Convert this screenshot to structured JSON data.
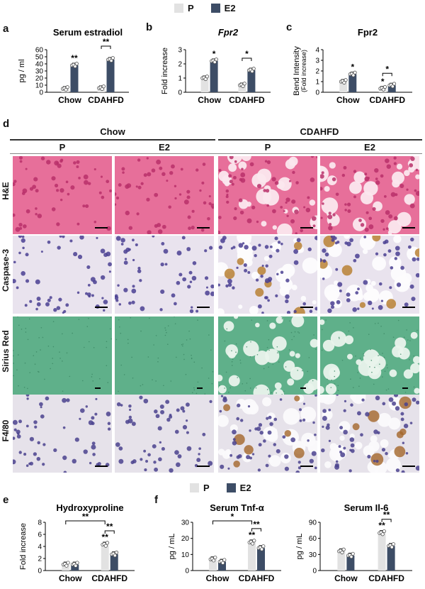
{
  "legend": {
    "p_label": "P",
    "e2_label": "E2",
    "p_color": "#e2e2e2",
    "e2_color": "#3d4d66"
  },
  "panels": {
    "a": "a",
    "b": "b",
    "c": "c",
    "d": "d",
    "e": "e",
    "f": "f"
  },
  "chart_data": [
    {
      "id": "a",
      "type": "bar",
      "title": "Serum estradiol",
      "ylabel": "pg / ml",
      "ylim": [
        0,
        60
      ],
      "yticks": [
        "0",
        "10",
        "20",
        "30",
        "40",
        "50",
        "60"
      ],
      "categories": [
        "Chow",
        "CDAHFD"
      ],
      "series": [
        {
          "name": "P",
          "values": [
            5,
            6
          ]
        },
        {
          "name": "E2",
          "values": [
            38,
            46
          ]
        }
      ],
      "annotations": [
        {
          "cat": 0,
          "series": 1,
          "text": "**"
        },
        {
          "bracket": [
            1,
            "P",
            "E2"
          ],
          "text": "**"
        }
      ]
    },
    {
      "id": "b",
      "type": "bar",
      "title": "Fpr2",
      "title_italic": true,
      "ylabel": "Fold increase",
      "ylim": [
        0,
        3
      ],
      "yticks": [
        "0",
        "1",
        "2",
        "3"
      ],
      "categories": [
        "Chow",
        "CDAHFD"
      ],
      "series": [
        {
          "name": "P",
          "values": [
            1.0,
            0.5
          ]
        },
        {
          "name": "E2",
          "values": [
            2.2,
            1.55
          ]
        }
      ],
      "annotations": [
        {
          "cat": 0,
          "series": 1,
          "text": "*"
        },
        {
          "bracket": [
            1,
            "P",
            "E2"
          ],
          "text": "*"
        }
      ]
    },
    {
      "id": "c",
      "type": "bar",
      "title": "Fpr2",
      "ylabel": "Bend Intensity",
      "ylabel2": "(Fold increase)",
      "ylim": [
        0,
        4
      ],
      "yticks": [
        "0",
        "1",
        "2",
        "3",
        "4"
      ],
      "categories": [
        "Chow",
        "CDAHFD"
      ],
      "series": [
        {
          "name": "P",
          "values": [
            1.0,
            0.35
          ]
        },
        {
          "name": "E2",
          "values": [
            1.7,
            0.65
          ]
        }
      ],
      "annotations": [
        {
          "cat": 0,
          "series": 1,
          "text": "*"
        },
        {
          "cat": 1,
          "series": 0,
          "text": "*"
        },
        {
          "bracket": [
            1,
            "P",
            "E2"
          ],
          "text": "*"
        }
      ]
    },
    {
      "id": "e",
      "type": "bar",
      "title": "Hydroxyproline",
      "ylabel": "Fold increase",
      "ylim": [
        0,
        8
      ],
      "yticks": [
        "0",
        "2",
        "4",
        "6",
        "8"
      ],
      "categories": [
        "Chow",
        "CDAHFD"
      ],
      "series": [
        {
          "name": "P",
          "values": [
            1.0,
            4.3
          ]
        },
        {
          "name": "E2",
          "values": [
            1.0,
            2.7
          ]
        }
      ],
      "annotations": [
        {
          "cat": 1,
          "series": 0,
          "text": "**"
        },
        {
          "bracket": [
            1,
            "P",
            "E2"
          ],
          "text": "**"
        },
        {
          "bracket_across": [
            "Chow P",
            "CDAHFD P"
          ],
          "text": "**"
        }
      ]
    },
    {
      "id": "f1",
      "type": "bar",
      "title": "Serum Tnf-α",
      "ylabel": "pg / mL",
      "ylim": [
        0,
        30
      ],
      "yticks": [
        "0",
        "10",
        "20",
        "30"
      ],
      "categories": [
        "Chow",
        "CDAHFD"
      ],
      "series": [
        {
          "name": "P",
          "values": [
            7,
            17.5
          ]
        },
        {
          "name": "E2",
          "values": [
            5.5,
            14
          ]
        }
      ],
      "annotations": [
        {
          "cat": 1,
          "series": 0,
          "text": "**"
        },
        {
          "bracket": [
            1,
            "P",
            "E2"
          ],
          "text": "**"
        },
        {
          "bracket_across": [
            "Chow P",
            "CDAHFD P"
          ],
          "text": "*"
        }
      ]
    },
    {
      "id": "f2",
      "type": "bar",
      "title": "Serum Il-6",
      "ylabel": "pg / mL",
      "ylim": [
        0,
        90
      ],
      "yticks": [
        "0",
        "30",
        "60",
        "90"
      ],
      "categories": [
        "Chow",
        "CDAHFD"
      ],
      "series": [
        {
          "name": "P",
          "values": [
            36,
            70
          ]
        },
        {
          "name": "E2",
          "values": [
            28,
            46
          ]
        }
      ],
      "annotations": [
        {
          "cat": 1,
          "series": 0,
          "text": "**"
        },
        {
          "bracket": [
            1,
            "P",
            "E2"
          ],
          "text": "**"
        }
      ]
    }
  ],
  "histology": {
    "group_chow": "Chow",
    "group_cdahfd": "CDAHFD",
    "col_labels": [
      "P",
      "E2",
      "P",
      "E2"
    ],
    "rows": [
      "H&E",
      "Caspase-3",
      "Sirius Red",
      "F4/80"
    ]
  }
}
